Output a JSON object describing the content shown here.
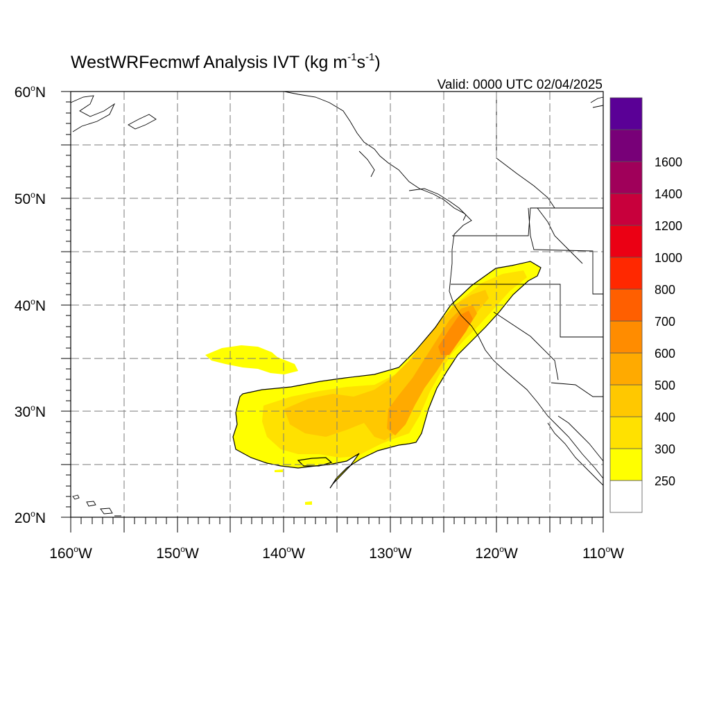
{
  "title": {
    "main": "WestWRFecmwf Analysis IVT (kg m",
    "sup1": "-1",
    "mid": "s",
    "sup2": "-1",
    "end": ")"
  },
  "valid_label": "Valid: 0000 UTC 02/04/2025",
  "lat_labels": [
    {
      "deg": "60",
      "sup": "o",
      "hem": "N"
    },
    {
      "deg": "50",
      "sup": "o",
      "hem": "N"
    },
    {
      "deg": "40",
      "sup": "o",
      "hem": "N"
    },
    {
      "deg": "30",
      "sup": "o",
      "hem": "N"
    },
    {
      "deg": "20",
      "sup": "o",
      "hem": "N"
    }
  ],
  "lon_labels": [
    {
      "deg": "160",
      "sup": "o",
      "hem": "W"
    },
    {
      "deg": "150",
      "sup": "o",
      "hem": "W"
    },
    {
      "deg": "140",
      "sup": "o",
      "hem": "W"
    },
    {
      "deg": "130",
      "sup": "o",
      "hem": "W"
    },
    {
      "deg": "120",
      "sup": "o",
      "hem": "W"
    },
    {
      "deg": "110",
      "sup": "o",
      "hem": "W"
    }
  ],
  "colorbar": {
    "colors": [
      "#ffffff",
      "#ffff00",
      "#ffe100",
      "#ffc800",
      "#ffaa00",
      "#ff8c00",
      "#ff5f00",
      "#ff2800",
      "#eb0014",
      "#c8003c",
      "#a0005a",
      "#780078",
      "#5a0096"
    ],
    "labels": [
      "250",
      "300",
      "400",
      "500",
      "600",
      "700",
      "800",
      "1000",
      "1200",
      "1400",
      "1600"
    ]
  },
  "fill_colors": {
    "level250": "#ffff00",
    "level300": "#ffe100",
    "level400": "#ffc800",
    "level500": "#ffaa00",
    "level600": "#ff8c00"
  }
}
